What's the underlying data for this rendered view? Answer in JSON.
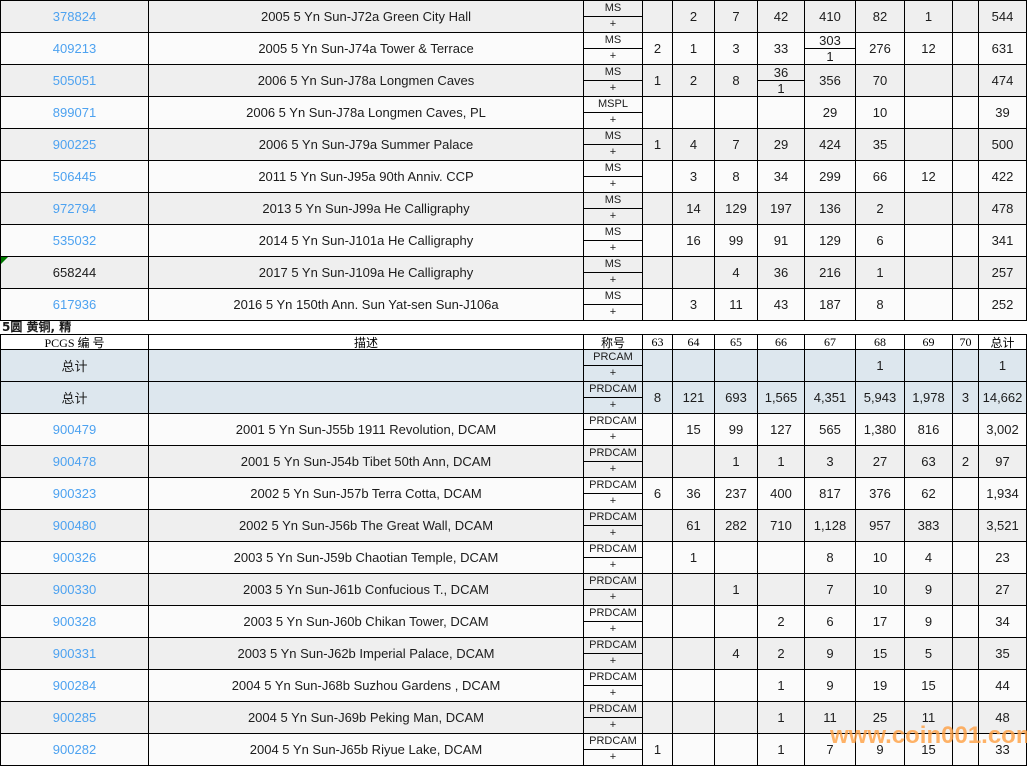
{
  "page": {
    "watermark": "www.coin001.com",
    "section_label": "5圆 黄铜, 精"
  },
  "colors": {
    "link": "#4da2f0",
    "base": "#fbfbfb",
    "alt": "#efefef",
    "summary": "#dde7ee",
    "watermark": "#ffa043",
    "marker": "#007a00"
  },
  "header": {
    "pcgs_label": "PCGS 编 号",
    "desc_label": "描述",
    "desig_label": "称号",
    "grade_labels": [
      "63",
      "64",
      "65",
      "66",
      "67",
      "68",
      "69",
      "70"
    ],
    "total_label": "总计",
    "plus_label": "+"
  },
  "top_table": {
    "rows": [
      {
        "id": "378824",
        "link": true,
        "desc": "2005 5 Yn Sun-J72a Green City Hall",
        "desig": "MS",
        "grades": [
          "",
          "2",
          "7",
          "42",
          "410",
          "82",
          "1",
          ""
        ],
        "total": "544"
      },
      {
        "id": "409213",
        "link": true,
        "desc": "2005 5 Yn Sun-J74a Tower & Terrace",
        "desig": "MS",
        "grades": [
          "2",
          "1",
          "3",
          "33",
          {
            "top": "303",
            "bottom": "1"
          },
          "276",
          "12",
          ""
        ],
        "total": "631"
      },
      {
        "id": "505051",
        "link": true,
        "desc": "2006 5 Yn Sun-J78a Longmen Caves",
        "desig": "MS",
        "grades": [
          "1",
          "2",
          "8",
          {
            "top": "36",
            "bottom": "1"
          },
          "356",
          "70",
          "",
          ""
        ],
        "total": "474"
      },
      {
        "id": "899071",
        "link": true,
        "desc": "2006 5 Yn Sun-J78a Longmen Caves, PL",
        "desig": "MSPL",
        "grades": [
          "",
          "",
          "",
          "",
          "29",
          "10",
          "",
          ""
        ],
        "total": "39"
      },
      {
        "id": "900225",
        "link": true,
        "desc": "2006 5 Yn Sun-J79a Summer Palace",
        "desig": "MS",
        "grades": [
          "1",
          "4",
          "7",
          "29",
          "424",
          "35",
          "",
          ""
        ],
        "total": "500"
      },
      {
        "id": "506445",
        "link": true,
        "desc": "2011 5 Yn Sun-J95a 90th Anniv. CCP",
        "desig": "MS",
        "grades": [
          "",
          "3",
          "8",
          "34",
          "299",
          "66",
          "12",
          ""
        ],
        "total": "422"
      },
      {
        "id": "972794",
        "link": true,
        "desc": "2013 5 Yn Sun-J99a He Calligraphy",
        "desig": "MS",
        "grades": [
          "",
          "14",
          "129",
          "197",
          "136",
          "2",
          "",
          ""
        ],
        "total": "478"
      },
      {
        "id": "535032",
        "link": true,
        "desc": "2014 5 Yn Sun-J101a He Calligraphy",
        "desig": "MS",
        "grades": [
          "",
          "16",
          "99",
          "91",
          "129",
          "6",
          "",
          ""
        ],
        "total": "341"
      },
      {
        "id": "658244",
        "link": false,
        "desc": "2017 5 Yn Sun-J109a He Calligraphy",
        "desig": "MS",
        "grades": [
          "",
          "",
          "4",
          "36",
          "216",
          "1",
          "",
          ""
        ],
        "total": "257"
      },
      {
        "id": "617936",
        "link": true,
        "desc": "2016 5 Yn 150th Ann. Sun Yat-sen Sun-J106a",
        "desig": "MS",
        "grades": [
          "",
          "3",
          "11",
          "43",
          "187",
          "8",
          "",
          ""
        ],
        "total": "252"
      }
    ]
  },
  "bottom_table": {
    "rows": [
      {
        "id": "总计",
        "link": false,
        "summary": true,
        "desc": "",
        "desig": "PRCAM",
        "grades": [
          "",
          "",
          "",
          "",
          "",
          "1",
          "",
          ""
        ],
        "total": "1"
      },
      {
        "id": "总计",
        "link": false,
        "summary": true,
        "desc": "",
        "desig": "PRDCAM",
        "grades": [
          "8",
          "121",
          "693",
          "1,565",
          "4,351",
          "5,943",
          "1,978",
          "3"
        ],
        "total": "14,662"
      },
      {
        "id": "900479",
        "link": true,
        "desc": "2001 5 Yn Sun-J55b 1911 Revolution, DCAM",
        "desig": "PRDCAM",
        "grades": [
          "",
          "15",
          "99",
          "127",
          "565",
          "1,380",
          "816",
          ""
        ],
        "total": "3,002"
      },
      {
        "id": "900478",
        "link": true,
        "desc": "2001 5 Yn Sun-J54b Tibet 50th Ann, DCAM",
        "desig": "PRDCAM",
        "grades": [
          "",
          "",
          "1",
          "1",
          "3",
          "27",
          "63",
          "2"
        ],
        "total": "97"
      },
      {
        "id": "900323",
        "link": true,
        "desc": "2002 5 Yn Sun-J57b Terra Cotta, DCAM",
        "desig": "PRDCAM",
        "grades": [
          "6",
          "36",
          "237",
          "400",
          "817",
          "376",
          "62",
          ""
        ],
        "total": "1,934"
      },
      {
        "id": "900480",
        "link": true,
        "desc": "2002 5 Yn Sun-J56b The Great Wall, DCAM",
        "desig": "PRDCAM",
        "grades": [
          "",
          "61",
          "282",
          "710",
          "1,128",
          "957",
          "383",
          ""
        ],
        "total": "3,521"
      },
      {
        "id": "900326",
        "link": true,
        "desc": "2003 5 Yn Sun-J59b Chaotian Temple, DCAM",
        "desig": "PRDCAM",
        "grades": [
          "",
          "1",
          "",
          "",
          "8",
          "10",
          "4",
          ""
        ],
        "total": "23"
      },
      {
        "id": "900330",
        "link": true,
        "desc": "2003 5 Yn Sun-J61b Confucious T., DCAM",
        "desig": "PRDCAM",
        "grades": [
          "",
          "",
          "1",
          "",
          "7",
          "10",
          "9",
          ""
        ],
        "total": "27"
      },
      {
        "id": "900328",
        "link": true,
        "desc": "2003 5 Yn Sun-J60b Chikan Tower, DCAM",
        "desig": "PRDCAM",
        "grades": [
          "",
          "",
          "",
          "2",
          "6",
          "17",
          "9",
          ""
        ],
        "total": "34"
      },
      {
        "id": "900331",
        "link": true,
        "desc": "2003 5 Yn Sun-J62b Imperial Palace, DCAM",
        "desig": "PRDCAM",
        "grades": [
          "",
          "",
          "4",
          "2",
          "9",
          "15",
          "5",
          ""
        ],
        "total": "35"
      },
      {
        "id": "900284",
        "link": true,
        "desc": "2004 5 Yn Sun-J68b Suzhou Gardens , DCAM",
        "desig": "PRDCAM",
        "grades": [
          "",
          "",
          "",
          "1",
          "9",
          "19",
          "15",
          ""
        ],
        "total": "44"
      },
      {
        "id": "900285",
        "link": true,
        "desc": "2004 5 Yn Sun-J69b Peking Man, DCAM",
        "desig": "PRDCAM",
        "grades": [
          "",
          "",
          "",
          "1",
          "11",
          "25",
          "11",
          ""
        ],
        "total": "48"
      },
      {
        "id": "900282",
        "link": true,
        "desc": "2004 5 Yn Sun-J65b Riyue Lake, DCAM",
        "desig": "PRDCAM",
        "grades": [
          "1",
          "",
          "",
          "1",
          "7",
          "9",
          "15",
          ""
        ],
        "total": "33"
      }
    ]
  }
}
